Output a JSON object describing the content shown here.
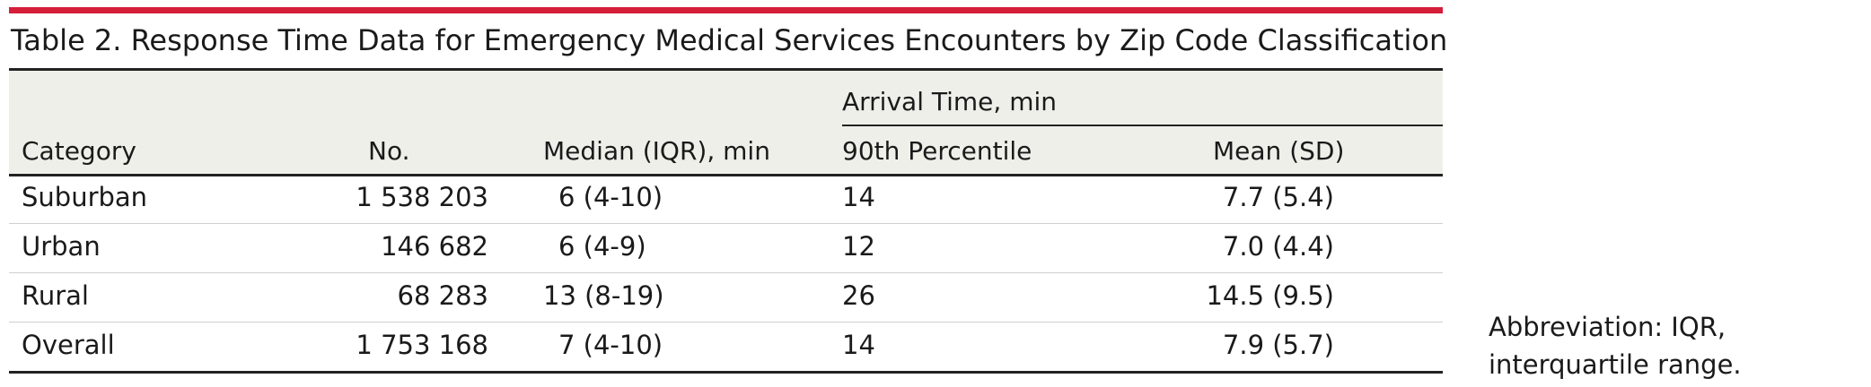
{
  "table": {
    "title": "Table 2. Response Time Data for Emergency Medical Services Encounters by Zip Code Classification",
    "spanning_header": "Arrival Time, min",
    "columns": [
      "Category",
      "No.",
      "Median (IQR), min",
      "90th Percentile",
      "Mean (SD)"
    ],
    "rows": [
      [
        "Suburban",
        "1 538 203",
        "6 (4-10)",
        "14",
        "7.7 (5.4)"
      ],
      [
        "Urban",
        "146 682",
        "6 (4-9)",
        "12",
        "7.0 (4.4)"
      ],
      [
        "Rural",
        "68 283",
        "13 (8-19)",
        "26",
        "14.5 (9.5)"
      ],
      [
        "Overall",
        "1 753 168",
        "7 (4-10)",
        "14",
        "7.9 (5.7)"
      ]
    ]
  },
  "footnote": "Abbreviation: IQR, interquartile range.",
  "colors": {
    "accent": "#d41e3a",
    "header_background": "#efefea",
    "rule": "#222222",
    "divider": "#cfcfcf"
  }
}
